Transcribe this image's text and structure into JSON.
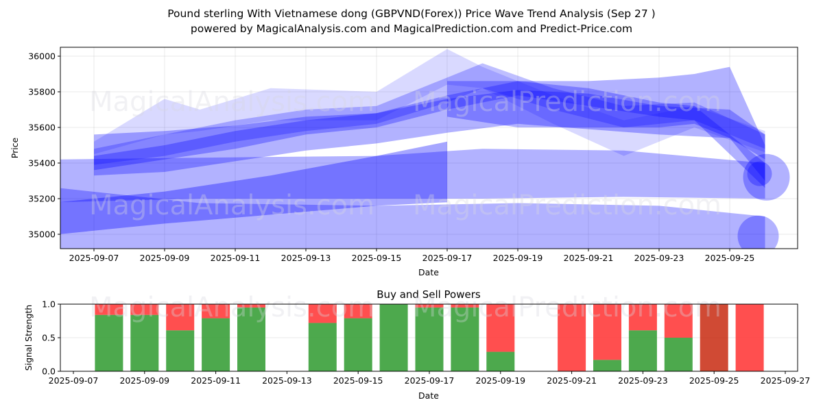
{
  "header": {
    "title": "Pound sterling With Vietnamese dong (GBPVND(Forex)) Price Wave Trend Analysis (Sep 27 )",
    "subtitle": "powered by MagicalAnalysis.com and MagicalPrediction.com and Predict-Price.com"
  },
  "watermarks": [
    "MagicalAnalysis.com",
    "MagicalPrediction.com"
  ],
  "colors": {
    "wave": "#0000ff",
    "buy": "#2e9a2e",
    "sell": "#ff3030",
    "sell_strong": "#c82a10"
  },
  "chart_data": [
    {
      "type": "area",
      "title": "",
      "xlabel": "Date",
      "ylabel": "Price",
      "ylim": [
        34920,
        36050
      ],
      "xlim": [
        "2025-09-06",
        "2025-09-27"
      ],
      "grid": true,
      "x_ticks": [
        "2025-09-07",
        "2025-09-09",
        "2025-09-11",
        "2025-09-13",
        "2025-09-15",
        "2025-09-17",
        "2025-09-19",
        "2025-09-21",
        "2025-09-23",
        "2025-09-25"
      ],
      "y_ticks": [
        35000,
        35200,
        35400,
        35600,
        35800,
        36000
      ],
      "series": [
        {
          "name": "wave-long-low",
          "opacity": 0.3,
          "x": [
            "2025-09-06",
            "2025-09-10",
            "2025-09-15",
            "2025-09-19",
            "2025-09-23",
            "2025-09-26"
          ],
          "upper": [
            35260,
            35175,
            35160,
            35175,
            35160,
            35100
          ],
          "lower": [
            34920,
            34920,
            34920,
            34920,
            34920,
            34920
          ]
        },
        {
          "name": "wave-long-mid",
          "opacity": 0.3,
          "x": [
            "2025-09-06",
            "2025-09-10",
            "2025-09-15",
            "2025-09-18",
            "2025-09-22",
            "2025-09-26"
          ],
          "upper": [
            35420,
            35430,
            35440,
            35480,
            35470,
            35400
          ],
          "lower": [
            35180,
            35200,
            35200,
            35200,
            35210,
            35200
          ]
        },
        {
          "name": "wave-thick-low",
          "opacity": 0.35,
          "x": [
            "2025-09-06",
            "2025-09-09",
            "2025-09-12",
            "2025-09-15",
            "2025-09-17"
          ],
          "upper": [
            35180,
            35240,
            35330,
            35440,
            35520
          ],
          "lower": [
            35000,
            35060,
            35110,
            35160,
            35180
          ]
        },
        {
          "name": "wave-band-1",
          "opacity": 0.3,
          "x": [
            "2025-09-07",
            "2025-09-09",
            "2025-09-11",
            "2025-09-13",
            "2025-09-15",
            "2025-09-17",
            "2025-09-19",
            "2025-09-21",
            "2025-09-23",
            "2025-09-25",
            "2025-09-26"
          ],
          "upper": [
            35560,
            35580,
            35610,
            35660,
            35680,
            35760,
            35810,
            35790,
            35720,
            35700,
            35560
          ],
          "lower": [
            35330,
            35350,
            35410,
            35470,
            35510,
            35570,
            35620,
            35590,
            35560,
            35540,
            35300
          ]
        },
        {
          "name": "wave-band-2",
          "opacity": 0.15,
          "x": [
            "2025-09-07",
            "2025-09-09",
            "2025-09-10",
            "2025-09-12",
            "2025-09-15",
            "2025-09-17",
            "2025-09-18",
            "2025-09-20",
            "2025-09-22",
            "2025-09-24",
            "2025-09-26"
          ],
          "upper": [
            35520,
            35760,
            35700,
            35820,
            35800,
            36040,
            35940,
            35780,
            35640,
            35720,
            35580
          ],
          "lower": [
            35450,
            35560,
            35580,
            35640,
            35640,
            35840,
            35820,
            35620,
            35440,
            35600,
            35460
          ]
        },
        {
          "name": "wave-band-3",
          "opacity": 0.25,
          "x": [
            "2025-09-07",
            "2025-09-09",
            "2025-09-11",
            "2025-09-13",
            "2025-09-15",
            "2025-09-17",
            "2025-09-18",
            "2025-09-20",
            "2025-09-22",
            "2025-09-24",
            "2025-09-26"
          ],
          "upper": [
            35480,
            35560,
            35640,
            35700,
            35720,
            35880,
            35960,
            35820,
            35720,
            35740,
            35560
          ],
          "lower": [
            35390,
            35440,
            35520,
            35580,
            35620,
            35740,
            35820,
            35700,
            35600,
            35640,
            35480
          ]
        },
        {
          "name": "wave-band-4",
          "opacity": 0.3,
          "x": [
            "2025-09-07",
            "2025-09-09",
            "2025-09-11",
            "2025-09-13",
            "2025-09-15",
            "2025-09-17",
            "2025-09-19",
            "2025-09-21",
            "2025-09-23",
            "2025-09-24",
            "2025-09-26"
          ],
          "upper": [
            35440,
            35500,
            35580,
            35640,
            35680,
            35780,
            35860,
            35820,
            35740,
            35720,
            35400
          ],
          "lower": [
            35360,
            35420,
            35480,
            35560,
            35600,
            35700,
            35780,
            35720,
            35660,
            35640,
            35260
          ]
        },
        {
          "name": "wave-high-envelope",
          "opacity": 0.3,
          "x": [
            "2025-09-17",
            "2025-09-19",
            "2025-09-21",
            "2025-09-23",
            "2025-09-24",
            "2025-09-25",
            "2025-09-26"
          ],
          "upper": [
            35860,
            35860,
            35860,
            35880,
            35900,
            35940,
            35500
          ],
          "lower": [
            35660,
            35600,
            35600,
            35600,
            35620,
            35540,
            35420
          ]
        }
      ]
    },
    {
      "type": "bar",
      "title": "Buy and Sell Powers",
      "xlabel": "Date",
      "ylabel": "Signal Strength",
      "ylim": [
        0.0,
        1.0
      ],
      "xlim": [
        "2025-09-06",
        "2025-09-27"
      ],
      "grid": true,
      "x_ticks": [
        "2025-09-07",
        "2025-09-09",
        "2025-09-11",
        "2025-09-13",
        "2025-09-15",
        "2025-09-17",
        "2025-09-19",
        "2025-09-21",
        "2025-09-23",
        "2025-09-25",
        "2025-09-27"
      ],
      "y_ticks": [
        "0.0",
        "0.5",
        "1.0"
      ],
      "categories": [
        "2025-09-08",
        "2025-09-09",
        "2025-09-10",
        "2025-09-11",
        "2025-09-12",
        "2025-09-14",
        "2025-09-15",
        "2025-09-16",
        "2025-09-17",
        "2025-09-18",
        "2025-09-19",
        "2025-09-21",
        "2025-09-22",
        "2025-09-23",
        "2025-09-24",
        "2025-09-25",
        "2025-09-26"
      ],
      "series": [
        {
          "name": "Buy",
          "values": [
            0.84,
            0.84,
            0.61,
            0.79,
            0.95,
            0.72,
            0.79,
            1.0,
            0.95,
            0.95,
            0.29,
            0.0,
            0.17,
            0.61,
            0.5,
            0.0,
            0.0
          ]
        },
        {
          "name": "Sell",
          "values": [
            0.16,
            0.16,
            0.39,
            0.21,
            0.05,
            0.28,
            0.21,
            0.0,
            0.05,
            0.05,
            0.71,
            1.0,
            0.83,
            0.39,
            0.5,
            1.0,
            1.0
          ]
        }
      ],
      "strong_sell": [
        "2025-09-25"
      ]
    }
  ]
}
